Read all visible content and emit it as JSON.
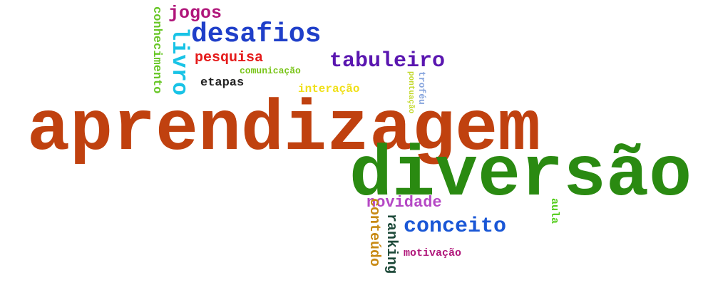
{
  "words": {
    "aprendizagem": {
      "text": "aprendizagem",
      "color": "#c0410f"
    },
    "diversao": {
      "text": "diversão",
      "color": "#2a8a11"
    },
    "desafios": {
      "text": "desafios",
      "color": "#1f3fc9"
    },
    "tabuleiro": {
      "text": "tabuleiro",
      "color": "#5a16b0"
    },
    "jogos": {
      "text": "jogos",
      "color": "#b0167a"
    },
    "livro": {
      "text": "livro",
      "color": "#18c3e6"
    },
    "conhecimento": {
      "text": "conhecimento",
      "color": "#66c624"
    },
    "pesquisa": {
      "text": "pesquisa",
      "color": "#e51b1b"
    },
    "comunicacao": {
      "text": "comunicação",
      "color": "#7ac51a"
    },
    "etapas": {
      "text": "etapas",
      "color": "#222222"
    },
    "interacao": {
      "text": "interação",
      "color": "#f0e019"
    },
    "trofeu": {
      "text": "troféu",
      "color": "#86a4dd"
    },
    "pontuacao": {
      "text": "pontuação",
      "color": "#c2d82a"
    },
    "novidade": {
      "text": "novidade",
      "color": "#b548c5"
    },
    "conceito": {
      "text": "conceito",
      "color": "#1a57d6"
    },
    "conteudo": {
      "text": "conteúdo",
      "color": "#c88a14"
    },
    "ranking": {
      "text": "ranking",
      "color": "#1e4a3a"
    },
    "aula": {
      "text": "aula",
      "color": "#52cc1a"
    },
    "motivacao": {
      "text": "motivação",
      "color": "#b0167a"
    }
  }
}
